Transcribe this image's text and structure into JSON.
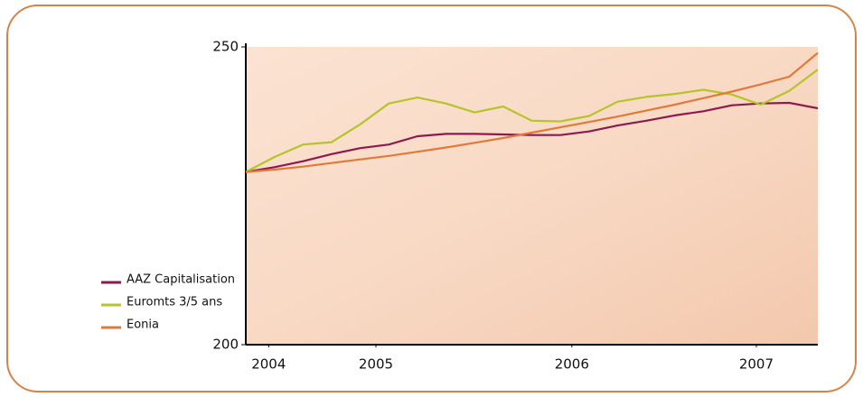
{
  "chart_data": {
    "type": "line",
    "x": [
      0,
      2,
      4,
      6,
      8,
      10,
      12,
      14,
      16,
      18,
      20,
      22,
      24,
      26,
      28,
      30,
      32,
      34,
      36,
      38,
      40
    ],
    "xlim": [
      0,
      40
    ],
    "xticks": [
      {
        "value": 1.6,
        "label": "2004"
      },
      {
        "value": 9.1,
        "label": "2005"
      },
      {
        "value": 22.8,
        "label": "2006"
      },
      {
        "value": 35.7,
        "label": "2007"
      }
    ],
    "ylim": [
      200,
      250
    ],
    "yticks": [
      200,
      250
    ],
    "series": [
      {
        "name": "AAZ Capitalisation",
        "color": "#8b1a4f",
        "values": [
          229,
          229.8,
          230.8,
          232,
          233,
          233.6,
          235,
          235.4,
          235.4,
          235.3,
          235.2,
          235.2,
          235.8,
          236.8,
          237.6,
          238.5,
          239.2,
          240.2,
          240.5,
          240.6,
          239.7
        ]
      },
      {
        "name": "Euromts 3/5 ans",
        "color": "#b5c42a",
        "values": [
          229,
          231.5,
          233.6,
          234,
          237,
          240.5,
          241.5,
          240.5,
          239,
          240,
          237.6,
          237.5,
          238.4,
          240.8,
          241.6,
          242.1,
          242.8,
          242,
          240.3,
          242.6,
          246.2
        ]
      },
      {
        "name": "Eonia",
        "color": "#e07a3a",
        "values": [
          229,
          229.4,
          229.9,
          230.5,
          231.1,
          231.7,
          232.4,
          233.1,
          233.9,
          234.7,
          235.6,
          236.5,
          237.4,
          238.3,
          239.3,
          240.3,
          241.4,
          242.5,
          243.7,
          245,
          249
        ]
      }
    ]
  }
}
